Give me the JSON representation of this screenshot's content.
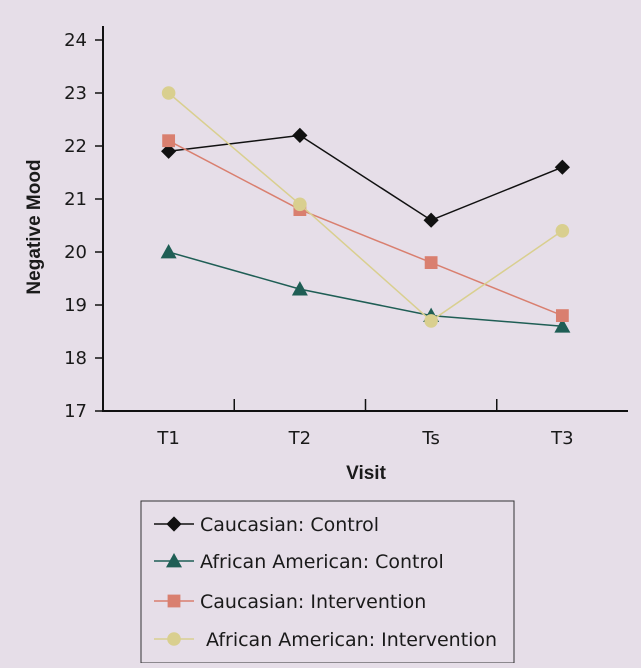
{
  "colors": {
    "background": "#e6dee8",
    "caucasian_control": "#111111",
    "african_american_control": "#1f5e55",
    "caucasian_intervention": "#d97f6f",
    "african_american_intervention": "#d9cf8f"
  },
  "chart_data": {
    "type": "line",
    "xlabel": "Visit",
    "ylabel": "Negative Mood",
    "categories": [
      "T1",
      "T2",
      "Ts",
      "T3"
    ],
    "ylim": [
      17,
      24
    ],
    "yticks": [
      "17",
      "18",
      "19",
      "20",
      "21",
      "22",
      "23",
      "24"
    ],
    "grid": false,
    "legend_position": "bottom",
    "series": [
      {
        "name": "Caucasian: Control",
        "values": [
          21.9,
          22.2,
          20.6,
          21.6
        ],
        "marker": "diamond",
        "color": "#111111",
        "line_color": "#111111"
      },
      {
        "name": "African American: Control",
        "values": [
          20.0,
          19.3,
          18.8,
          18.6
        ],
        "marker": "triangle",
        "color": "#1f5e55",
        "line_color": "#1f5e55"
      },
      {
        "name": "Caucasian: Intervention",
        "values": [
          22.1,
          20.8,
          19.8,
          18.8
        ],
        "marker": "square",
        "color": "#d97f6f",
        "line_color": "#d97f6f"
      },
      {
        "name": "African American: Intervention",
        "values": [
          23.0,
          20.9,
          18.7,
          20.4
        ],
        "marker": "circle",
        "color": "#d9cf8f",
        "line_color": "#d9cf8f"
      }
    ]
  }
}
